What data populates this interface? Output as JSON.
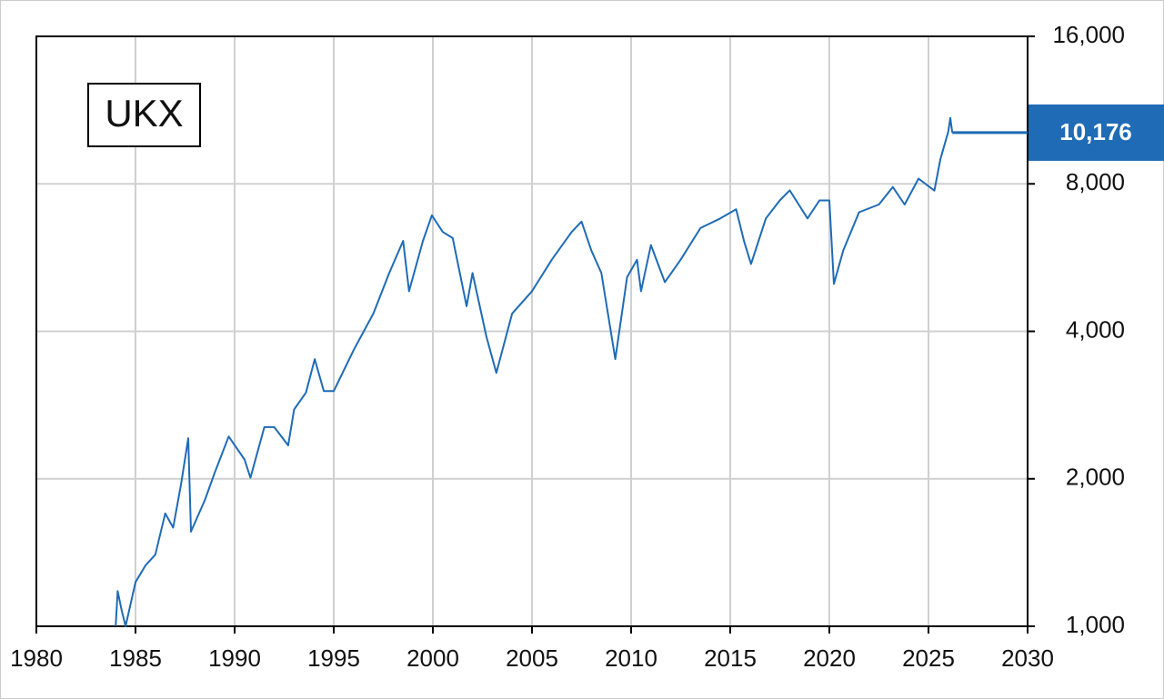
{
  "chart_data": {
    "type": "line",
    "annotation": "UKX",
    "series": [
      {
        "name": "UKX",
        "color": "#1f6bb5",
        "x": [
          1984.0,
          1984.1,
          1984.3,
          1984.5,
          1985.0,
          1985.5,
          1986.0,
          1986.5,
          1986.9,
          1987.3,
          1987.66,
          1987.8,
          1988.5,
          1989.0,
          1989.7,
          1990.5,
          1990.8,
          1991.5,
          1992.0,
          1992.7,
          1993.0,
          1993.6,
          1994.04,
          1994.5,
          1995.0,
          1996.0,
          1997.0,
          1997.8,
          1998.5,
          1998.8,
          1999.5,
          1999.95,
          2000.5,
          2001.0,
          2001.7,
          2002.0,
          2002.7,
          2003.2,
          2004.0,
          2005.0,
          2006.0,
          2007.0,
          2007.5,
          2008.0,
          2008.5,
          2009.2,
          2009.8,
          2010.3,
          2010.5,
          2011.0,
          2011.7,
          2012.5,
          2013.5,
          2014.5,
          2015.3,
          2015.7,
          2016.05,
          2016.8,
          2017.5,
          2018.0,
          2018.9,
          2019.5,
          2020.0,
          2020.23,
          2020.7,
          2021.5,
          2022.5,
          2023.2,
          2023.8,
          2024.5,
          2025.3,
          2025.6,
          2026.0,
          2026.1,
          2026.2
        ],
        "values": [
          1000,
          1180,
          1080,
          1000,
          1230,
          1330,
          1400,
          1700,
          1590,
          1950,
          2420,
          1560,
          1810,
          2060,
          2440,
          2190,
          2010,
          2550,
          2550,
          2340,
          2770,
          3000,
          3510,
          3020,
          3020,
          3660,
          4350,
          5260,
          6120,
          4830,
          6120,
          6900,
          6380,
          6200,
          4500,
          5260,
          3900,
          3290,
          4350,
          4830,
          5600,
          6380,
          6700,
          5840,
          5260,
          3510,
          5160,
          5600,
          4830,
          6000,
          5040,
          5600,
          6500,
          6800,
          7100,
          6100,
          5490,
          6800,
          7400,
          7760,
          6800,
          7400,
          7400,
          5000,
          5850,
          7000,
          7260,
          7880,
          7260,
          8200,
          7750,
          8980,
          10230,
          10900,
          10176
        ]
      }
    ],
    "last_value": {
      "value": 10176,
      "label": "10,176"
    },
    "xlim": [
      1980,
      2030
    ],
    "xticks": [
      1980,
      1985,
      1990,
      1995,
      2000,
      2005,
      2010,
      2015,
      2020,
      2025,
      2030
    ],
    "ylim": [
      1000,
      16000
    ],
    "yticks": [
      {
        "value": 1000,
        "label": "1,000"
      },
      {
        "value": 2000,
        "label": "2,000"
      },
      {
        "value": 4000,
        "label": "4,000"
      },
      {
        "value": 8000,
        "label": "8,000"
      },
      {
        "value": 16000,
        "label": "16,000"
      }
    ],
    "log_scale": true,
    "grid": true
  }
}
